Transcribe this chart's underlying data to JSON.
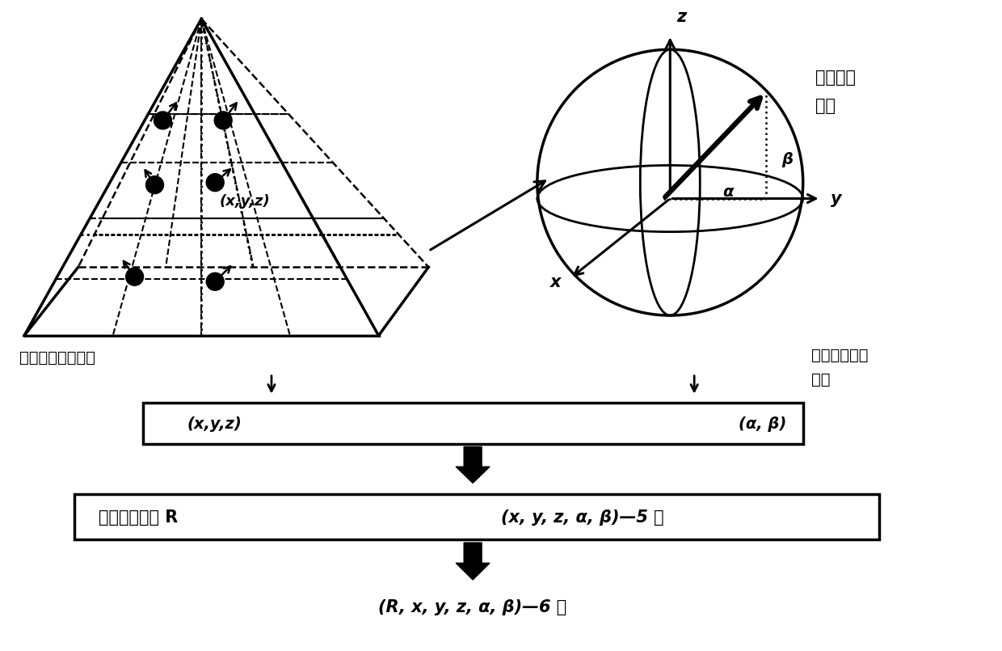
{
  "bg_color": "#ffffff",
  "text_color": "#000000",
  "label_left_top": "圆形目标位置取样",
  "label_right_top1": "圆形目标",
  "label_right_top2": "法向",
  "label_right_bottom1": "圆形目标法向",
  "label_right_bottom2": "取样",
  "box1_left": "(x,y,z)",
  "box1_right": "(α, β)",
  "box2_left": "圆形目标半径 R",
  "box2_right": "(x, y, z, α, β)—5 维",
  "box3_text": "(R, x, y, z, α, β)—6 维",
  "sphere_label_z": "z",
  "sphere_label_y": "y",
  "sphere_label_x": "x",
  "sphere_label_alpha": "α",
  "sphere_label_beta": "β",
  "pyramid_label": "(x,y,z)"
}
